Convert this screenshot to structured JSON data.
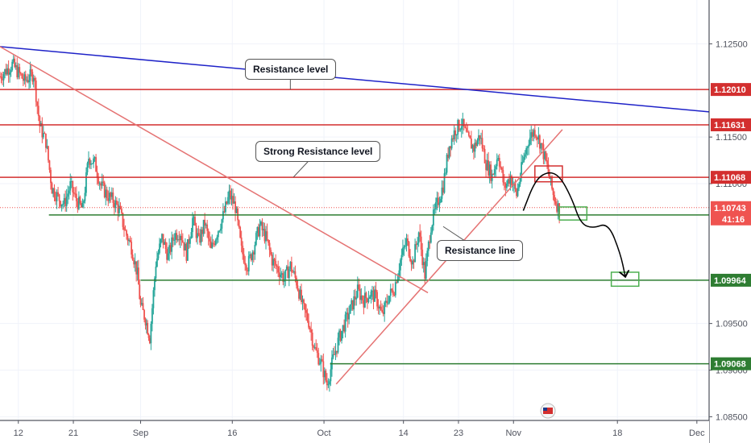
{
  "chart_data": {
    "type": "candlestick",
    "y_range": [
      1.0846,
      1.1297
    ],
    "x_ticks": [
      {
        "label": "12",
        "day": 12
      },
      {
        "label": "21",
        "day": 21
      },
      {
        "label": "Sep",
        "day": 32
      },
      {
        "label": "16",
        "day": 47
      },
      {
        "label": "Oct",
        "day": 62
      },
      {
        "label": "14",
        "day": 75
      },
      {
        "label": "23",
        "day": 84
      },
      {
        "label": "Nov",
        "day": 93
      },
      {
        "label": "18",
        "day": 110
      },
      {
        "label": "Dec",
        "day": 123
      }
    ],
    "x_range": [
      9,
      125
    ],
    "y_ticks": [
      {
        "label": "1.12500",
        "value": 1.125
      },
      {
        "label": "1.11500",
        "value": 1.115
      },
      {
        "label": "1.11000",
        "value": 1.11
      },
      {
        "label": "1.09500",
        "value": 1.095
      },
      {
        "label": "1.09000",
        "value": 1.09
      },
      {
        "label": "1.08500",
        "value": 1.085
      }
    ],
    "horizontal_levels": [
      {
        "label": "1.12010",
        "value": 1.1201,
        "color": "#d32f2f",
        "start_day": 9
      },
      {
        "label": "1.11631",
        "value": 1.11631,
        "color": "#d32f2f",
        "start_day": 9
      },
      {
        "label": "1.11068",
        "value": 1.11068,
        "color": "#d32f2f",
        "start_day": 9
      },
      {
        "label": "1.10664",
        "value": 1.10664,
        "color": "#2e7d32",
        "start_day": 17
      },
      {
        "label": "1.09964",
        "value": 1.09964,
        "color": "#2e7d32",
        "start_day": 32
      },
      {
        "label": "1.09068",
        "value": 1.09068,
        "color": "#2e7d32",
        "start_day": 63
      }
    ],
    "current_price": {
      "label": "1.10743",
      "value": 1.10743,
      "countdown": "41:16",
      "color": "#ef5350"
    },
    "trendlines": [
      {
        "from": [
          9,
          1.1247
        ],
        "to": [
          125,
          1.1177
        ],
        "color": "#1e22c8"
      },
      {
        "from": [
          9,
          1.1247
        ],
        "to": [
          79,
          1.0983
        ],
        "color": "#e57373"
      },
      {
        "from": [
          64,
          1.0885
        ],
        "to": [
          101,
          1.1158
        ],
        "color": "#e57373"
      }
    ],
    "annotations": [
      {
        "text": "Resistance level",
        "box_day": 56.5,
        "box_value": 1.1223,
        "point_day": 56.5,
        "point_value": 1.1201
      },
      {
        "text": "Strong Resistance level",
        "box_day": 61,
        "box_value": 1.1135,
        "point_day": 57,
        "point_value": 1.1107
      },
      {
        "text": "Resistance line",
        "box_day": 87.5,
        "box_value": 1.1028,
        "point_day": 81.5,
        "point_value": 1.1054
      }
    ],
    "zones": [
      {
        "day_from": 96.5,
        "day_to": 101,
        "high": 1.1119,
        "low": 1.1102,
        "color": "#d32f2f"
      },
      {
        "day_from": 100.5,
        "day_to": 105,
        "high": 1.1075,
        "low": 1.1061,
        "color": "#4caf50"
      },
      {
        "day_from": 109,
        "day_to": 113.5,
        "high": 1.1005,
        "low": 1.099,
        "color": "#4caf50"
      }
    ],
    "projection": [
      [
        94.6,
        1.1071
      ],
      [
        96.5,
        1.1103
      ],
      [
        98.5,
        1.1113
      ],
      [
        100.5,
        1.1109
      ],
      [
        102.5,
        1.1085
      ],
      [
        104,
        1.1057
      ],
      [
        106,
        1.1052
      ],
      [
        108.5,
        1.1058
      ],
      [
        110.5,
        1.1025
      ],
      [
        111.3,
        1.1
      ]
    ],
    "candle_colors": {
      "up": "#26a69a",
      "down": "#ef5350"
    },
    "closes": [
      [
        9,
        1.1215
      ],
      [
        11,
        1.1228
      ],
      [
        13,
        1.121
      ],
      [
        14.5,
        1.1218
      ],
      [
        15.5,
        1.1162
      ],
      [
        16.5,
        1.1145
      ],
      [
        17.5,
        1.1095
      ],
      [
        18.5,
        1.1085
      ],
      [
        19.5,
        1.1078
      ],
      [
        20.5,
        1.1098
      ],
      [
        21.5,
        1.1082
      ],
      [
        22.5,
        1.1072
      ],
      [
        23.5,
        1.1128
      ],
      [
        24.5,
        1.1122
      ],
      [
        25.5,
        1.1098
      ],
      [
        26.5,
        1.1088
      ],
      [
        27.5,
        1.1082
      ],
      [
        28.5,
        1.1072
      ],
      [
        29.5,
        1.1048
      ],
      [
        30.5,
        1.1032
      ],
      [
        31.5,
        1.1002
      ],
      [
        32,
        1.0968
      ],
      [
        32.8,
        1.0955
      ],
      [
        33.5,
        1.0935
      ],
      [
        34.5,
        1.1015
      ],
      [
        35.5,
        1.1042
      ],
      [
        36.5,
        1.1022
      ],
      [
        37.5,
        1.1045
      ],
      [
        38.5,
        1.1048
      ],
      [
        39.5,
        1.1025
      ],
      [
        40.5,
        1.1062
      ],
      [
        41.5,
        1.1038
      ],
      [
        42.5,
        1.1058
      ],
      [
        43.5,
        1.1028
      ],
      [
        44.5,
        1.1048
      ],
      [
        45.5,
        1.1065
      ],
      [
        46.5,
        1.1088
      ],
      [
        47.5,
        1.1075
      ],
      [
        48.5,
        1.1028
      ],
      [
        49.5,
        1.1012
      ],
      [
        50.5,
        1.1032
      ],
      [
        51.5,
        1.1055
      ],
      [
        52.5,
        1.1042
      ],
      [
        53.5,
        1.1018
      ],
      [
        54.5,
        1.1008
      ],
      [
        55.5,
        1.0998
      ],
      [
        56.5,
        1.1012
      ],
      [
        57.5,
        1.0995
      ],
      [
        58.5,
        1.0968
      ],
      [
        59.5,
        1.0952
      ],
      [
        60.5,
        1.0922
      ],
      [
        61.5,
        1.0908
      ],
      [
        62.5,
        1.0885
      ],
      [
        63.5,
        1.0912
      ],
      [
        64.5,
        1.0935
      ],
      [
        65.5,
        1.0952
      ],
      [
        66.5,
        1.0968
      ],
      [
        67.5,
        1.0985
      ],
      [
        68.5,
        1.0975
      ],
      [
        69.5,
        1.0982
      ],
      [
        70.5,
        1.0978
      ],
      [
        71.5,
        1.0958
      ],
      [
        72.5,
        1.0978
      ],
      [
        73.5,
        1.0988
      ],
      [
        74.5,
        1.1018
      ],
      [
        75.5,
        1.1038
      ],
      [
        76.5,
        1.1015
      ],
      [
        77.5,
        1.1048
      ],
      [
        78.5,
        1.1002
      ],
      [
        79.5,
        1.1055
      ],
      [
        80.5,
        1.1078
      ],
      [
        81.5,
        1.1098
      ],
      [
        82.5,
        1.1142
      ],
      [
        83.5,
        1.1158
      ],
      [
        84.5,
        1.1165
      ],
      [
        85.5,
        1.1148
      ],
      [
        86.5,
        1.1138
      ],
      [
        87.5,
        1.1152
      ],
      [
        88.5,
        1.1122
      ],
      [
        89.5,
        1.1108
      ],
      [
        90.5,
        1.1132
      ],
      [
        91.5,
        1.1095
      ],
      [
        92.5,
        1.1108
      ],
      [
        93.5,
        1.1088
      ],
      [
        94.5,
        1.1122
      ],
      [
        95.5,
        1.1148
      ],
      [
        96.5,
        1.1158
      ],
      [
        97.5,
        1.1142
      ],
      [
        98.5,
        1.1118
      ],
      [
        99.5,
        1.1088
      ],
      [
        100.5,
        1.1071
      ]
    ]
  }
}
